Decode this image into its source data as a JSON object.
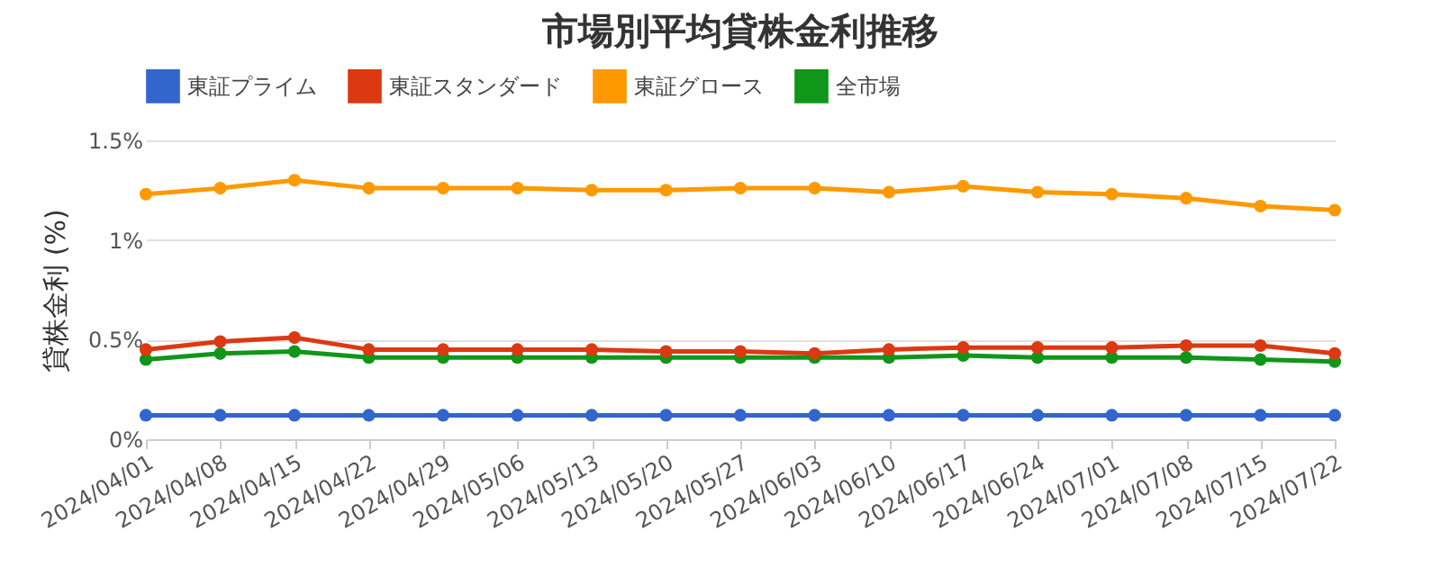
{
  "chart_data": {
    "type": "line",
    "title": "市場別平均貸株金利推移",
    "ylabel": "貸株金利 (%)",
    "categories": [
      "2024/04/01",
      "2024/04/08",
      "2024/04/15",
      "2024/04/22",
      "2024/04/29",
      "2024/05/06",
      "2024/05/13",
      "2024/05/20",
      "2024/05/27",
      "2024/06/03",
      "2024/06/10",
      "2024/06/17",
      "2024/06/24",
      "2024/07/01",
      "2024/07/08",
      "2024/07/15",
      "2024/07/22"
    ],
    "series": [
      {
        "name": "東証プライム",
        "color": "#3366cc",
        "values": [
          0.12,
          0.12,
          0.12,
          0.12,
          0.12,
          0.12,
          0.12,
          0.12,
          0.12,
          0.12,
          0.12,
          0.12,
          0.12,
          0.12,
          0.12,
          0.12,
          0.12
        ]
      },
      {
        "name": "東証スタンダード",
        "color": "#dc3912",
        "values": [
          0.45,
          0.49,
          0.51,
          0.45,
          0.45,
          0.45,
          0.45,
          0.44,
          0.44,
          0.43,
          0.45,
          0.46,
          0.46,
          0.46,
          0.47,
          0.47,
          0.43
        ]
      },
      {
        "name": "東証グロース",
        "color": "#ff9900",
        "values": [
          1.23,
          1.26,
          1.3,
          1.26,
          1.26,
          1.26,
          1.25,
          1.25,
          1.26,
          1.26,
          1.24,
          1.27,
          1.24,
          1.23,
          1.21,
          1.17,
          1.15
        ]
      },
      {
        "name": "全市場",
        "color": "#109618",
        "values": [
          0.4,
          0.43,
          0.44,
          0.41,
          0.41,
          0.41,
          0.41,
          0.41,
          0.41,
          0.41,
          0.41,
          0.42,
          0.41,
          0.41,
          0.41,
          0.4,
          0.39
        ]
      }
    ],
    "ylim": [
      0,
      1.5
    ],
    "yticks": [
      {
        "value": 0,
        "label": "0%"
      },
      {
        "value": 0.5,
        "label": "0.5%"
      },
      {
        "value": 1,
        "label": "1%"
      },
      {
        "value": 1.5,
        "label": "1.5%"
      }
    ],
    "grid": "y",
    "legend": "top",
    "marker": "circle",
    "line_style": "solid"
  }
}
